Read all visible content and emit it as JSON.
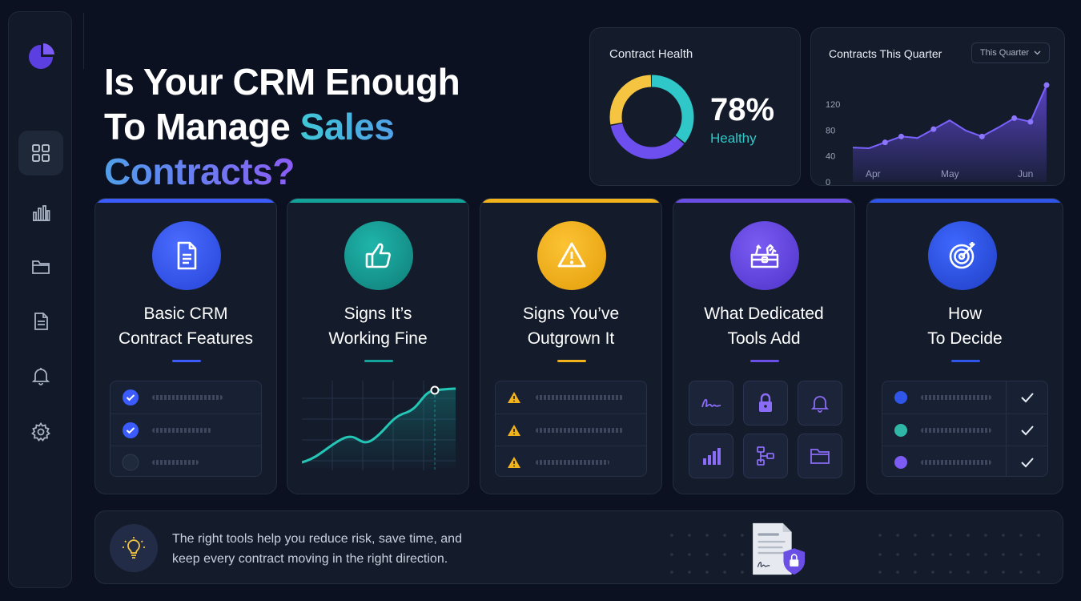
{
  "headline": {
    "line1": "Is Your CRM Enough",
    "line2_plain": "To Manage ",
    "line2_highlight": "Sales Contracts?"
  },
  "sidebar": {
    "items": [
      {
        "icon": "grid-icon",
        "active": true
      },
      {
        "icon": "bar-chart-icon",
        "active": false
      },
      {
        "icon": "folder-icon",
        "active": false
      },
      {
        "icon": "document-icon",
        "active": false
      },
      {
        "icon": "bell-icon",
        "active": false
      },
      {
        "icon": "gear-icon",
        "active": false
      }
    ]
  },
  "health": {
    "title": "Contract Health",
    "percent_label": "78%",
    "status": "Healthy",
    "segments": [
      {
        "color": "#2fc7c7",
        "fraction": 0.36
      },
      {
        "color": "#6d4ff0",
        "fraction": 0.36
      },
      {
        "color": "#f5c542",
        "fraction": 0.28
      }
    ]
  },
  "quarter": {
    "title": "Contracts This Quarter",
    "select_value": "This Quarter",
    "chart_data": {
      "type": "area",
      "title": "Contracts This Quarter",
      "y_ticks": [
        "120",
        "80",
        "40",
        "0"
      ],
      "ylim": [
        0,
        120
      ],
      "x_ticks": [
        "Apr",
        "May",
        "Jun"
      ],
      "x": [
        0,
        1,
        2,
        3,
        4,
        5,
        6,
        7,
        8,
        9,
        10,
        11,
        12
      ],
      "values": [
        25,
        24,
        32,
        40,
        38,
        50,
        62,
        48,
        40,
        52,
        65,
        60,
        110
      ],
      "marker_indices": [
        2,
        3,
        5,
        8,
        10,
        11,
        12
      ],
      "color": "#6d4ff0"
    }
  },
  "cards": [
    {
      "title1": "Basic CRM",
      "title2": "Contract Features",
      "accent": "#3b5bfd",
      "icon": "document-icon"
    },
    {
      "title1": "Signs It’s",
      "title2": "Working Fine",
      "accent": "#13a39b",
      "icon": "thumbs-up-icon"
    },
    {
      "title1": "Signs You’ve",
      "title2": "Outgrown It",
      "accent": "#f2b21c",
      "icon": "warning-icon"
    },
    {
      "title1": "What Dedicated",
      "title2": "Tools Add",
      "accent": "#6a4ee6",
      "icon": "toolbox-icon"
    },
    {
      "title1": "How",
      "title2": "To Decide",
      "accent": "#2f56e8",
      "icon": "target-icon"
    }
  ],
  "footer": {
    "line1": "The right tools help you reduce risk, save time, and",
    "line2": "keep every contract moving in the right direction."
  }
}
